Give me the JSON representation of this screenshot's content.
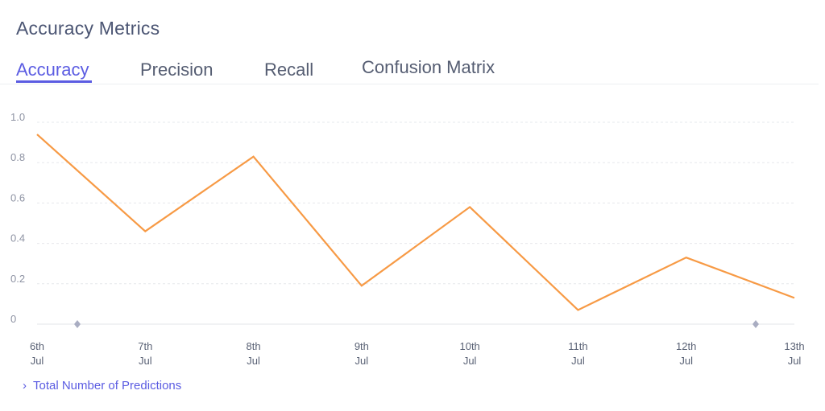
{
  "header": {
    "title": "Accuracy Metrics"
  },
  "tabs": [
    {
      "label": "Accuracy",
      "active": true
    },
    {
      "label": "Precision",
      "active": false
    },
    {
      "label": "Recall",
      "active": false
    },
    {
      "label": "Confusion Matrix",
      "active": false
    }
  ],
  "chart_data": {
    "type": "line",
    "x": [
      "6th\nJul",
      "7th\nJul",
      "8th\nJul",
      "9th\nJul",
      "10th\nJul",
      "11th\nJul",
      "12th\nJul",
      "13th\nJul"
    ],
    "series": [
      {
        "values": [
          0.94,
          0.46,
          0.83,
          0.19,
          0.58,
          0.07,
          0.33,
          0.13
        ],
        "color": "#f79a45"
      }
    ],
    "yticks": [
      "0",
      "0.2",
      "0.4",
      "0.6",
      "0.8",
      "1.0"
    ],
    "ylim": [
      0,
      1
    ],
    "grid": true,
    "range_handles": [
      "diamond",
      "diamond"
    ]
  },
  "footer": {
    "chevron_icon": "chevron-right-icon",
    "link_label": "Total Number of Predictions"
  }
}
